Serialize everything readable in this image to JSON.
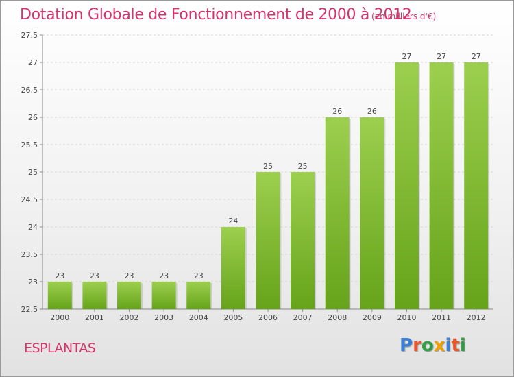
{
  "header": {
    "title": "Dotation Globale de Fonctionnement de 2000 à 2012",
    "subtitle": "(en milliers d'€)"
  },
  "footer": {
    "place": "ESPLANTAS",
    "logo_letters": [
      {
        "ch": "P",
        "color": "#3a7fd5"
      },
      {
        "ch": "r",
        "color": "#e8562a"
      },
      {
        "ch": "o",
        "color": "#2f9e44"
      },
      {
        "ch": "x",
        "color": "#f0a000"
      },
      {
        "ch": "i",
        "color": "#3a7fd5"
      },
      {
        "ch": "t",
        "color": "#e8562a"
      },
      {
        "ch": "i",
        "color": "#2f9e44"
      }
    ]
  },
  "chart_data": {
    "type": "bar",
    "categories": [
      "2000",
      "2001",
      "2002",
      "2003",
      "2004",
      "2005",
      "2006",
      "2007",
      "2008",
      "2009",
      "2010",
      "2011",
      "2012"
    ],
    "values": [
      23,
      23,
      23,
      23,
      23,
      24,
      25,
      25,
      26,
      26,
      27,
      27,
      27
    ],
    "data_labels": [
      "23",
      "23",
      "23",
      "23",
      "23",
      "24",
      "25",
      "25",
      "26",
      "26",
      "27",
      "27",
      "27"
    ],
    "yticks": [
      22.5,
      23,
      23.5,
      24,
      24.5,
      25,
      25.5,
      26,
      26.5,
      27,
      27.5
    ],
    "ytick_labels": [
      "22.5",
      "23",
      "23.5",
      "24",
      "24.5",
      "25",
      "25.5",
      "26",
      "26.5",
      "27",
      "27.5"
    ],
    "ylim": [
      22.5,
      27.5
    ],
    "grid": true,
    "bar_color_top": "#9ccf4e",
    "bar_color_bottom": "#66a31a"
  }
}
